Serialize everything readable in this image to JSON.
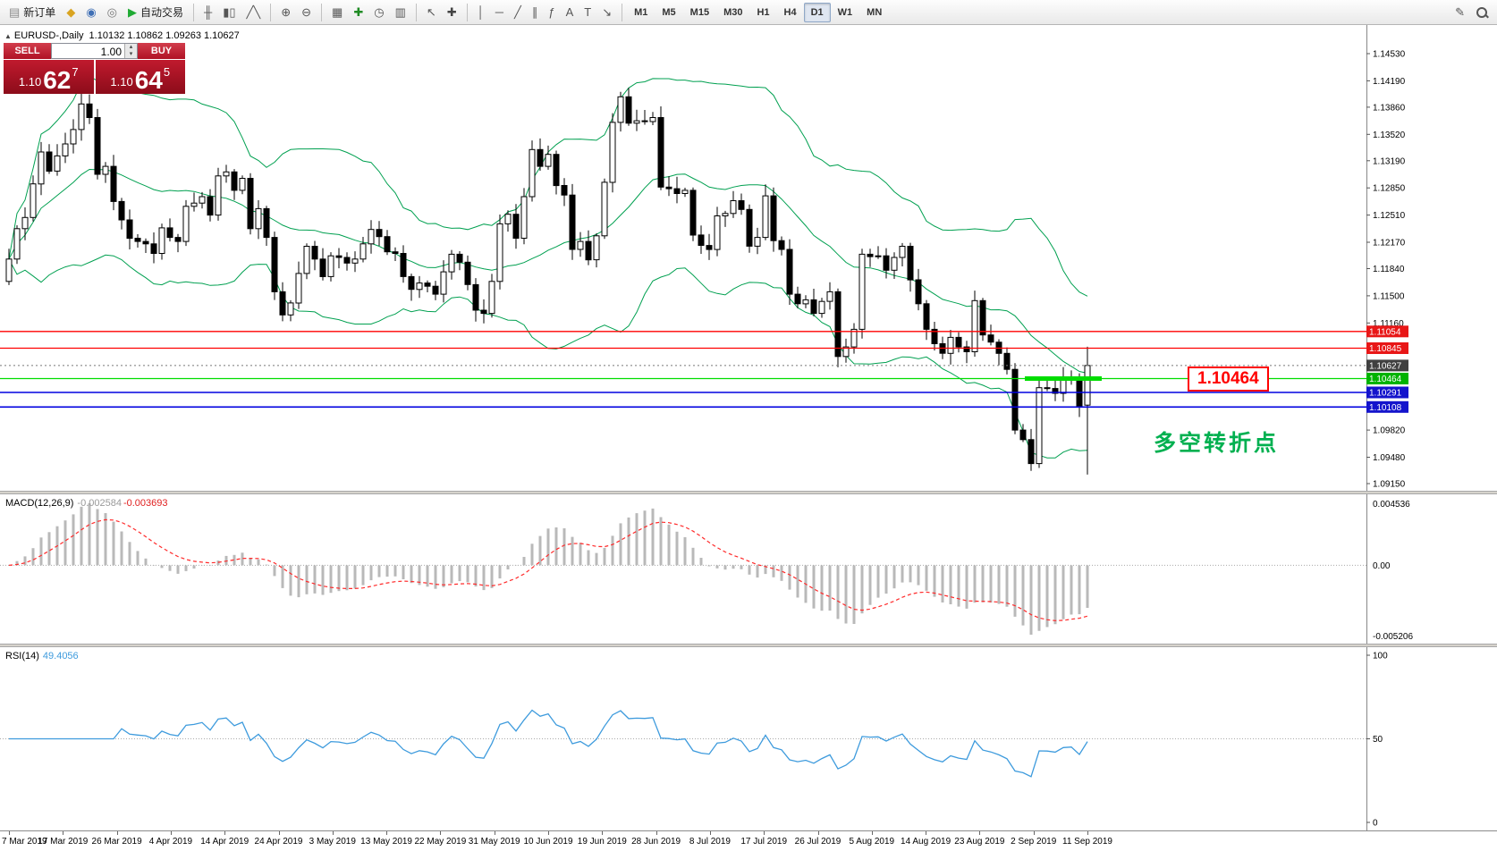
{
  "toolbar": {
    "groups": [
      [
        {
          "name": "new-order-button",
          "glyph": "▤",
          "glyph_color": "#8a8a8a",
          "label": "新订单"
        },
        {
          "name": "market-watch-button",
          "glyph": "◆",
          "glyph_color": "#d9a421"
        },
        {
          "name": "data-window-button",
          "glyph": "◉",
          "glyph_color": "#3f6fb5"
        },
        {
          "name": "terminal-button",
          "glyph": "◎",
          "glyph_color": "#777777"
        },
        {
          "name": "autotrading-button",
          "glyph": "▶",
          "glyph_color": "#1faa33",
          "label": "自动交易"
        }
      ],
      [
        {
          "name": "bar-chart-button",
          "glyph": "╫"
        },
        {
          "name": "candlestick-chart-button",
          "glyph": "▮▯"
        },
        {
          "name": "line-chart-button",
          "glyph": "╱╲"
        }
      ],
      [
        {
          "name": "zoom-in-button",
          "glyph": "⊕"
        },
        {
          "name": "zoom-out-button",
          "glyph": "⊖"
        }
      ],
      [
        {
          "name": "tile-windows-button",
          "glyph": "▦"
        },
        {
          "name": "indicators-button",
          "glyph": "✚",
          "glyph_color": "#1f8b24"
        },
        {
          "name": "periods-button",
          "glyph": "◷"
        },
        {
          "name": "templates-button",
          "glyph": "▥"
        }
      ],
      [
        {
          "name": "cursor-button",
          "glyph": "↖"
        },
        {
          "name": "crosshair-button",
          "glyph": "✚",
          "glyph_color": "#444444"
        }
      ],
      [
        {
          "name": "vertical-line-button",
          "glyph": "│"
        },
        {
          "name": "horizontal-line-button",
          "glyph": "─"
        },
        {
          "name": "trendline-button",
          "glyph": "╱"
        },
        {
          "name": "channel-button",
          "glyph": "∥"
        },
        {
          "name": "fibonacci-button",
          "glyph": "ƒ"
        },
        {
          "name": "text-button",
          "glyph": "A"
        },
        {
          "name": "label-button",
          "glyph": "T"
        },
        {
          "name": "arrows-button",
          "glyph": "↘"
        }
      ],
      [
        {
          "name": "tf-m1-button",
          "label": "M1",
          "tf": true
        },
        {
          "name": "tf-m5-button",
          "label": "M5",
          "tf": true
        },
        {
          "name": "tf-m15-button",
          "label": "M15",
          "tf": true
        },
        {
          "name": "tf-m30-button",
          "label": "M30",
          "tf": true
        },
        {
          "name": "tf-h1-button",
          "label": "H1",
          "tf": true
        },
        {
          "name": "tf-h4-button",
          "label": "H4",
          "tf": true
        },
        {
          "name": "tf-d1-button",
          "label": "D1",
          "tf": true,
          "active": true
        },
        {
          "name": "tf-w1-button",
          "label": "W1",
          "tf": true
        },
        {
          "name": "tf-mn-button",
          "label": "MN",
          "tf": true
        }
      ]
    ],
    "right_items": [
      {
        "name": "edit-button",
        "glyph": "✎"
      },
      {
        "name": "magnifier-button",
        "mag": true
      }
    ]
  },
  "quote_panel": {
    "sell_label": "SELL",
    "buy_label": "BUY",
    "volume": "1.00",
    "volume_up_glyph": "▴",
    "volume_down_glyph": "▾",
    "sell_price_small": "1.10",
    "sell_price_big": "62",
    "sell_price_sup": "7",
    "buy_price_small": "1.10",
    "buy_price_big": "64",
    "buy_price_sup": "5"
  },
  "chart": {
    "title_icon": "▲",
    "title": "EURUSD-,Daily",
    "ohlc_text": "1.10132 1.10862 1.09263 1.10627",
    "current_price": "1.10627",
    "level_box_label": "1.10464",
    "annotation": "多空转折点"
  },
  "price_axis": {
    "max": 1.1453,
    "min": 1.0915,
    "ticks": [
      "1.14530",
      "1.14190",
      "1.13860",
      "1.13520",
      "1.13190",
      "1.12850",
      "1.12510",
      "1.12170",
      "1.11840",
      "1.11500",
      "1.11160",
      "1.09820",
      "1.09480",
      "1.09150"
    ]
  },
  "hlines": [
    {
      "price": 1.11054,
      "label": "1.11054",
      "color": "#ff0000",
      "tag_color": "#e81717",
      "width": 1.3
    },
    {
      "price": 1.10845,
      "label": "1.10845",
      "color": "#ff0000",
      "tag_color": "#e81717",
      "width": 1.3
    },
    {
      "price": 1.10464,
      "label": "1.10464",
      "color": "#00dd00",
      "tag_color": "#00b300",
      "width": 1.3,
      "thick_segment": [
        1146,
        1232
      ]
    },
    {
      "price": 1.10291,
      "label": "1.10291",
      "color": "#0000e0",
      "tag_color": "#1414cc",
      "width": 1.6
    },
    {
      "price": 1.10108,
      "label": "1.10108",
      "color": "#0000e0",
      "tag_color": "#1414cc",
      "width": 1.6
    }
  ],
  "macd": {
    "label": "MACD(12,26,9)",
    "value1": "-0.002584",
    "value2": "-0.003693",
    "params": [
      12,
      26,
      9
    ],
    "axis": [
      "0.004536",
      "0.00",
      "-0.005206"
    ]
  },
  "rsi": {
    "label": "RSI(14)",
    "value": "49.4056",
    "period": 14,
    "axis": [
      {
        "v": 100,
        "t": "100"
      },
      {
        "v": 50,
        "t": "50"
      },
      {
        "v": 0,
        "t": "0"
      }
    ]
  },
  "colors": {
    "bollinger": "#00a050",
    "up_candle": "#ffffff",
    "down_candle": "#000000",
    "candle_outline": "#000000",
    "macd_histogram": "#b9b9b9",
    "macd_signal": "#ff2a2a",
    "rsi_line": "#3e9bdd",
    "annotation_green": "#00b050",
    "level_box_red": "#ff0000"
  },
  "chart_data": {
    "type": "candlestick",
    "symbol": "EURUSD-",
    "timeframe": "Daily",
    "last_candle_ohlc": [
      1.10132,
      1.10862,
      1.09263,
      1.10627
    ],
    "bollinger": {
      "period": 20,
      "deviation": 2
    },
    "closes": [
      1.1196,
      1.1234,
      1.1248,
      1.129,
      1.133,
      1.1306,
      1.1325,
      1.134,
      1.1358,
      1.139,
      1.1373,
      1.1302,
      1.1312,
      1.1268,
      1.1245,
      1.1222,
      1.1218,
      1.1215,
      1.1203,
      1.1235,
      1.1223,
      1.1218,
      1.1262,
      1.1266,
      1.1274,
      1.1251,
      1.13,
      1.1305,
      1.1282,
      1.1297,
      1.1234,
      1.1259,
      1.1223,
      1.1155,
      1.1126,
      1.1141,
      1.1178,
      1.1212,
      1.1196,
      1.1174,
      1.12,
      1.1198,
      1.1191,
      1.1196,
      1.1215,
      1.1233,
      1.1224,
      1.1205,
      1.1203,
      1.1174,
      1.1158,
      1.1166,
      1.1162,
      1.1152,
      1.118,
      1.1202,
      1.1192,
      1.1164,
      1.1132,
      1.1128,
      1.1168,
      1.124,
      1.1252,
      1.1222,
      1.1274,
      1.1333,
      1.1312,
      1.1327,
      1.1288,
      1.1276,
      1.1208,
      1.1218,
      1.1195,
      1.1225,
      1.1292,
      1.1367,
      1.1399,
      1.1366,
      1.1369,
      1.1368,
      1.1373,
      1.1286,
      1.1284,
      1.1278,
      1.1282,
      1.1226,
      1.1213,
      1.1208,
      1.125,
      1.1253,
      1.1269,
      1.1258,
      1.1212,
      1.1223,
      1.1275,
      1.1219,
      1.1208,
      1.1152,
      1.114,
      1.1145,
      1.1128,
      1.1143,
      1.1155,
      1.1074,
      1.1086,
      1.1108,
      1.1202,
      1.1199,
      1.12,
      1.1182,
      1.1198,
      1.1212,
      1.117,
      1.114,
      1.1108,
      1.109,
      1.1078,
      1.1098,
      1.1086,
      1.108,
      1.1144,
      1.1101,
      1.1092,
      1.1078,
      1.1058,
      1.0982,
      1.097,
      1.094,
      1.1035,
      1.1034,
      1.1028,
      1.1046,
      1.1048,
      1.1012,
      1.10627
    ],
    "date_labels": [
      "7 Mar 2019",
      "17 Mar 2019",
      "26 Mar 2019",
      "4 Apr 2019",
      "14 Apr 2019",
      "24 Apr 2019",
      "3 May 2019",
      "13 May 2019",
      "22 May 2019",
      "31 May 2019",
      "10 Jun 2019",
      "19 Jun 2019",
      "28 Jun 2019",
      "8 Jul 2019",
      "17 Jul 2019",
      "26 Jul 2019",
      "5 Aug 2019",
      "14 Aug 2019",
      "23 Aug 2019",
      "2 Sep 2019",
      "11 Sep 2019"
    ]
  }
}
